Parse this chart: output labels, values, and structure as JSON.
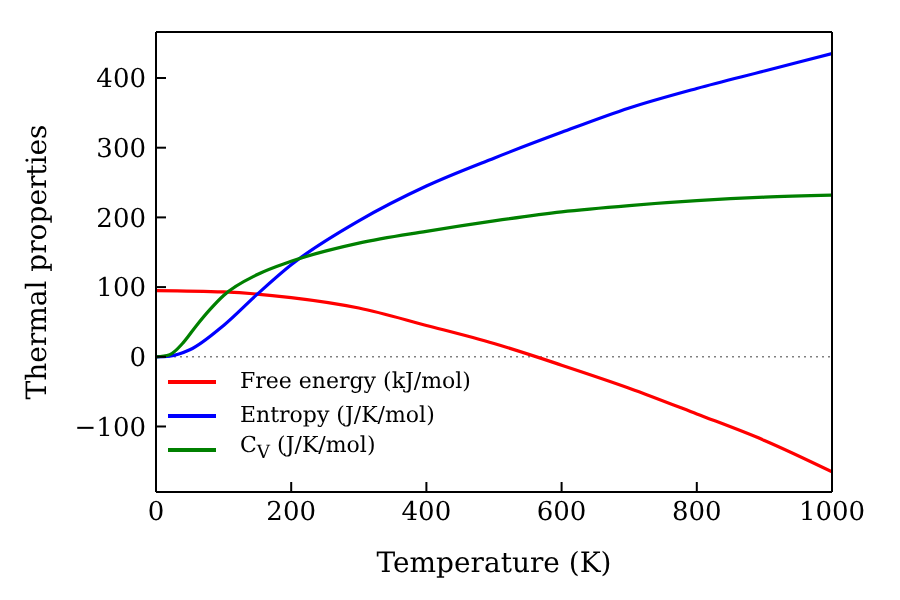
{
  "chart_data": {
    "type": "line",
    "xlabel": "Temperature (K)",
    "ylabel": "Thermal properties",
    "xlim": [
      0,
      1000
    ],
    "ylim": [
      -194,
      466
    ],
    "xticks": [
      0,
      200,
      400,
      600,
      800,
      1000
    ],
    "yticks": [
      -100,
      0,
      100,
      200,
      300,
      400
    ],
    "grid": false,
    "legend": "bottom left",
    "marker": "none",
    "line_style": "solid",
    "ref_lines": [
      {
        "axis": "y",
        "value": 0,
        "color": "#808080",
        "line_style": "dotted"
      }
    ],
    "series": [
      {
        "name": "Free energy (kJ/mol)",
        "color": "#ff0000",
        "x": [
          0,
          100,
          200,
          300,
          400,
          500,
          600,
          700,
          800,
          900,
          1000
        ],
        "values": [
          95,
          93,
          85,
          70,
          45,
          19,
          -12,
          -45,
          -82,
          -120,
          -165
        ]
      },
      {
        "name": "Entropy (J/K/mol)",
        "color": "#0000ff",
        "x": [
          0,
          20,
          50,
          100,
          150,
          200,
          300,
          400,
          500,
          600,
          700,
          800,
          900,
          1000
        ],
        "values": [
          0,
          1,
          10,
          45,
          90,
          132,
          195,
          245,
          285,
          322,
          357,
          385,
          410,
          435
        ]
      },
      {
        "name": "C$_{V}$ (J/K/mol)",
        "color": "#008000",
        "x": [
          0,
          20,
          40,
          60,
          80,
          100,
          150,
          200,
          300,
          400,
          500,
          600,
          700,
          800,
          900,
          1000
        ],
        "values": [
          0,
          3,
          20,
          45,
          68,
          88,
          118,
          137,
          163,
          180,
          195,
          208,
          217,
          224,
          229,
          232
        ]
      }
    ]
  }
}
